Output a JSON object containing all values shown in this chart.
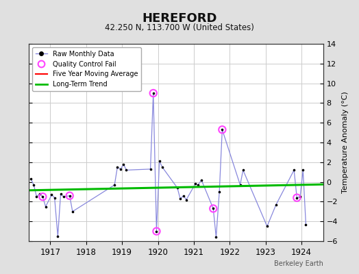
{
  "title": "HEREFORD",
  "subtitle": "42.250 N, 113.700 W (United States)",
  "ylabel": "Temperature Anomaly (°C)",
  "watermark": "Berkeley Earth",
  "xlim": [
    1916.4,
    1924.6
  ],
  "ylim": [
    -6,
    14
  ],
  "yticks": [
    -6,
    -4,
    -2,
    0,
    2,
    4,
    6,
    8,
    10,
    12,
    14
  ],
  "xticks": [
    1917,
    1918,
    1919,
    1920,
    1921,
    1922,
    1923,
    1924
  ],
  "background_color": "#e0e0e0",
  "plot_bg_color": "#ffffff",
  "raw_x": [
    1916.46,
    1916.54,
    1916.62,
    1916.71,
    1916.79,
    1916.87,
    1917.04,
    1917.12,
    1917.21,
    1917.29,
    1917.37,
    1917.54,
    1917.62,
    1918.79,
    1918.87,
    1918.96,
    1919.04,
    1919.12,
    1919.79,
    1919.87,
    1919.96,
    1920.04,
    1920.12,
    1920.54,
    1920.62,
    1920.71,
    1920.79,
    1921.04,
    1921.12,
    1921.21,
    1921.54,
    1921.62,
    1921.71,
    1921.79,
    1922.29,
    1922.37,
    1923.04,
    1923.29,
    1923.79,
    1923.87,
    1923.96,
    1924.04,
    1924.12
  ],
  "raw_y": [
    0.3,
    -0.3,
    -1.5,
    -1.2,
    -1.5,
    -2.5,
    -1.3,
    -1.6,
    -5.5,
    -1.2,
    -1.5,
    -1.4,
    -3.0,
    -0.3,
    1.5,
    1.3,
    1.8,
    1.2,
    1.3,
    9.0,
    -5.0,
    2.1,
    1.5,
    -0.6,
    -1.7,
    -1.4,
    -1.8,
    -0.2,
    -0.3,
    0.2,
    -2.7,
    -5.6,
    -1.0,
    5.3,
    -0.3,
    1.2,
    -4.5,
    -2.3,
    1.2,
    -1.6,
    -1.5,
    1.2,
    -4.3
  ],
  "qc_fail_x": [
    1916.79,
    1917.54,
    1919.87,
    1919.96,
    1921.54,
    1921.79,
    1923.87
  ],
  "qc_fail_y": [
    -1.5,
    -1.4,
    9.0,
    -5.0,
    -2.7,
    5.3,
    -1.6
  ],
  "trend_x": [
    1916.4,
    1924.6
  ],
  "trend_y": [
    -0.85,
    -0.25
  ],
  "grid_color": "#cccccc",
  "raw_line_color": "#8888dd",
  "raw_dot_color": "#000000",
  "qc_color": "#ff44ff",
  "trend_color": "#00bb00",
  "moving_avg_color": "#ff0000"
}
